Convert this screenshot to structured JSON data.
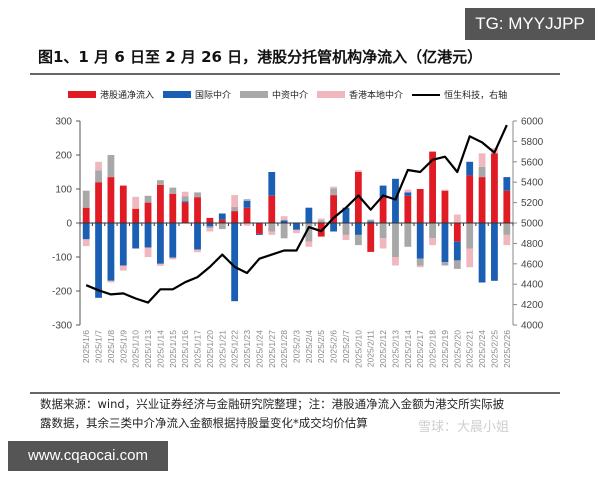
{
  "badges": {
    "top_right": "TG: MYYJJPP",
    "bottom_left": "www.cqaocai.com"
  },
  "title": "图1、1 月 6 日至 2 月 26 日，港股分托管机构净流入（亿港元）",
  "legend": [
    {
      "label": "港股通净流入",
      "color": "#e01b24",
      "kind": "bar"
    },
    {
      "label": "国际中介",
      "color": "#1a5fb4",
      "kind": "bar"
    },
    {
      "label": "中资中介",
      "color": "#a8a8a8",
      "kind": "bar"
    },
    {
      "label": "香港本地中介",
      "color": "#f0b8be",
      "kind": "bar"
    },
    {
      "label": "恒生科技，右轴",
      "color": "#000000",
      "kind": "line"
    }
  ],
  "footer": {
    "line1": "数据来源：wind，兴业证券经济与金融研究院整理；注：港股通净流入金额为港交所实际披",
    "line2": "露数据，其余三类中介净流入金额根据持股量变化*成交均价估算",
    "watermark": "雪球：大晨小姐"
  },
  "chart_data": {
    "type": "bar",
    "stacked": true,
    "title": "图1、1 月 6 日至 2 月 26 日，港股分托管机构净流入（亿港元）",
    "xlabel": "",
    "ylabel": "亿港元",
    "ylim": [
      -300,
      300
    ],
    "yticks": [
      300,
      200,
      100,
      0,
      -100,
      -200,
      -300
    ],
    "y2lim": [
      4000,
      6000
    ],
    "y2ticks": [
      6000,
      5800,
      5600,
      5400,
      5200,
      5000,
      4800,
      4600,
      4400,
      4200,
      4000
    ],
    "grid": false,
    "legend_position": "top",
    "categories": [
      "2025/1/6",
      "2025/1/7",
      "2025/1/8",
      "2025/1/9",
      "2025/1/10",
      "2025/1/13",
      "2025/1/14",
      "2025/1/15",
      "2025/1/16",
      "2025/1/17",
      "2025/1/20",
      "2025/1/21",
      "2025/1/22",
      "2025/1/23",
      "2025/1/24",
      "2025/1/27",
      "2025/1/28",
      "2025/2/3",
      "2025/2/4",
      "2025/2/5",
      "2025/2/6",
      "2025/2/7",
      "2025/2/10",
      "2025/2/11",
      "2025/2/12",
      "2025/2/13",
      "2025/2/14",
      "2025/2/17",
      "2025/2/18",
      "2025/2/19",
      "2025/2/20",
      "2025/2/21",
      "2025/2/24",
      "2025/2/25",
      "2025/2/26"
    ],
    "series": [
      {
        "name": "港股通净流入",
        "color": "#e01b24",
        "axis": "left",
        "values": [
          45,
          120,
          135,
          110,
          42,
          60,
          112,
          86,
          60,
          76,
          15,
          10,
          35,
          45,
          -32,
          80,
          0,
          0,
          0,
          -40,
          82,
          0,
          150,
          -85,
          75,
          0,
          80,
          100,
          210,
          95,
          -55,
          140,
          135,
          205,
          95
        ]
      },
      {
        "name": "国际中介",
        "color": "#1a5fb4",
        "axis": "left",
        "values": [
          -48,
          -220,
          -170,
          -125,
          -75,
          -72,
          -120,
          -102,
          4,
          -78,
          -10,
          18,
          -230,
          20,
          -3,
          70,
          8,
          -20,
          45,
          0,
          -25,
          45,
          -35,
          5,
          35,
          130,
          10,
          -105,
          0,
          -115,
          -55,
          40,
          -175,
          -170,
          40
        ]
      },
      {
        "name": "中资中介",
        "color": "#a8a8a8",
        "axis": "left",
        "values": [
          50,
          35,
          65,
          0,
          0,
          20,
          14,
          18,
          15,
          14,
          -5,
          -18,
          12,
          5,
          0,
          -25,
          -45,
          0,
          -55,
          8,
          20,
          -35,
          -30,
          5,
          -45,
          -100,
          -70,
          -20,
          -45,
          -10,
          -25,
          -75,
          30,
          0,
          -35
        ]
      },
      {
        "name": "香港本地中介",
        "color": "#f0b8be",
        "axis": "left",
        "values": [
          -20,
          25,
          -5,
          -15,
          35,
          -28,
          -6,
          -5,
          13,
          -8,
          -10,
          0,
          35,
          -8,
          0,
          -10,
          12,
          -10,
          -15,
          5,
          5,
          -15,
          5,
          0,
          -30,
          -25,
          8,
          -5,
          -20,
          3,
          25,
          -55,
          40,
          15,
          -30
        ]
      },
      {
        "name": "恒生科技，右轴",
        "color": "#000000",
        "axis": "right",
        "type": "line",
        "values": [
          4390,
          4340,
          4300,
          4310,
          4260,
          4220,
          4350,
          4350,
          4420,
          4470,
          4570,
          4690,
          4570,
          4510,
          4650,
          4690,
          4730,
          4730,
          4960,
          4920,
          5050,
          5150,
          5270,
          5130,
          5270,
          5230,
          5520,
          5500,
          5620,
          5650,
          5500,
          5850,
          5790,
          5690,
          5960
        ]
      }
    ]
  }
}
